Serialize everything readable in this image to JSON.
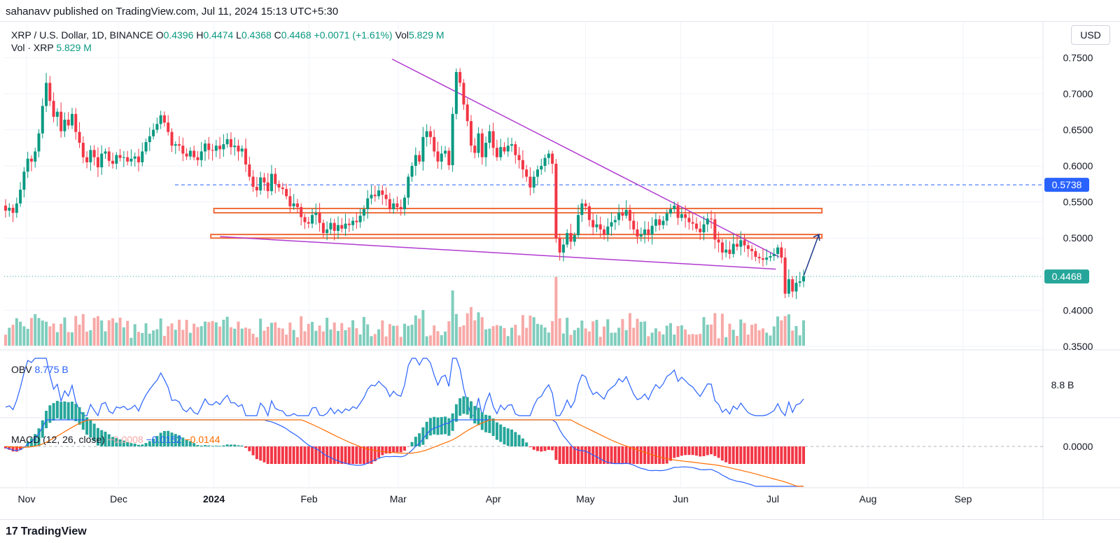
{
  "header": {
    "publish_text": "sahanavv published on TradingView.com, Jul 11, 2024 15:13 UTC+5:30"
  },
  "legend": {
    "symbol": "XRP / U.S. Dollar, 1D, BINANCE",
    "o_label": "O",
    "o_value": "0.4396",
    "h_label": "H",
    "h_value": "0.4474",
    "l_label": "L",
    "l_value": "0.4368",
    "c_label": "C",
    "c_value": "0.4468",
    "change": "+0.0071 (+1.61%)",
    "vol_label": "Vol",
    "vol_value": "5.829 M",
    "vol_line_label": "Vol · XRP",
    "vol_line_value": "5.829 M"
  },
  "currency": "USD",
  "indicators": {
    "obv_label": "OBV",
    "obv_value": "8.775 B",
    "macd_label": "MACD (12, 26, close)",
    "macd_hist": "−0.0008",
    "macd_line": "−0.0152",
    "macd_signal": "−0.0144"
  },
  "footer": {
    "logo_mark": "17",
    "logo_text": "TradingView"
  },
  "colors": {
    "up": "#089981",
    "down": "#f23645",
    "vol_up": "#7fcdbd",
    "vol_down": "#f7a9a7",
    "zone": "#ef6c3a",
    "trend": "#b13ad1",
    "obv": "#2962ff",
    "macd": "#2962ff",
    "signal": "#ff6d00",
    "dashed": "#2962ff",
    "price_tag": "#26a69a",
    "level_tag": "#2962ff"
  },
  "chart_data": {
    "type": "candlestick",
    "price_axis": {
      "ylim": [
        0.35,
        0.76
      ],
      "ticks": [
        "0.7500",
        "0.7000",
        "0.6500",
        "0.6000",
        "0.5500",
        "0.5000",
        "0.4000",
        "0.3500"
      ]
    },
    "time_axis": {
      "labels": [
        "Nov",
        "Dec",
        "2024",
        "Feb",
        "Mar",
        "Apr",
        "May",
        "Jun",
        "Jul",
        "Aug",
        "Sep"
      ]
    },
    "obv_axis": {
      "tick": "8.8 B"
    },
    "macd_axis": {
      "tick": "0.0000"
    },
    "current_price": "0.4468",
    "resistance_level": "0.5738",
    "zones": [
      {
        "from": 0.535,
        "to": 0.541,
        "start": "2024-01-01",
        "end": "2024-07-17"
      },
      {
        "from": 0.5,
        "to": 0.505,
        "start": "2023-12-31",
        "end": "2024-07-17"
      }
    ],
    "trendlines": [
      {
        "from": [
          "2024-02-28",
          0.748
        ],
        "to": [
          "2024-07-03",
          0.474
        ]
      },
      {
        "from": [
          "2024-01-03",
          0.502
        ],
        "to": [
          "2024-07-02",
          0.457
        ]
      }
    ],
    "projection_arrow": {
      "from": [
        "2024-07-11",
        0.447
      ],
      "to": [
        "2024-07-16",
        0.505
      ]
    },
    "candles": [
      [
        0.545,
        0.538
      ],
      [
        0.538,
        0.542
      ],
      [
        0.542,
        0.535
      ],
      [
        0.535,
        0.548
      ],
      [
        0.548,
        0.567
      ],
      [
        0.567,
        0.592
      ],
      [
        0.592,
        0.61
      ],
      [
        0.61,
        0.606
      ],
      [
        0.606,
        0.62
      ],
      [
        0.62,
        0.645
      ],
      [
        0.645,
        0.683
      ],
      [
        0.683,
        0.715
      ],
      [
        0.715,
        0.69
      ],
      [
        0.69,
        0.668
      ],
      [
        0.668,
        0.675
      ],
      [
        0.675,
        0.648
      ],
      [
        0.648,
        0.664
      ],
      [
        0.664,
        0.656
      ],
      [
        0.656,
        0.672
      ],
      [
        0.672,
        0.647
      ],
      [
        0.647,
        0.632
      ],
      [
        0.632,
        0.612
      ],
      [
        0.612,
        0.605
      ],
      [
        0.605,
        0.622
      ],
      [
        0.622,
        0.612
      ],
      [
        0.612,
        0.598
      ],
      [
        0.598,
        0.617
      ],
      [
        0.617,
        0.62
      ],
      [
        0.62,
        0.607
      ],
      [
        0.607,
        0.603
      ],
      [
        0.603,
        0.615
      ],
      [
        0.615,
        0.611
      ],
      [
        0.611,
        0.612
      ],
      [
        0.612,
        0.606
      ],
      [
        0.606,
        0.61
      ],
      [
        0.61,
        0.613
      ],
      [
        0.613,
        0.605
      ],
      [
        0.605,
        0.62
      ],
      [
        0.62,
        0.633
      ],
      [
        0.633,
        0.641
      ],
      [
        0.641,
        0.65
      ],
      [
        0.65,
        0.658
      ],
      [
        0.658,
        0.67
      ],
      [
        0.67,
        0.66
      ],
      [
        0.66,
        0.647
      ],
      [
        0.647,
        0.628
      ],
      [
        0.628,
        0.63
      ],
      [
        0.63,
        0.628
      ],
      [
        0.628,
        0.617
      ],
      [
        0.617,
        0.613
      ],
      [
        0.613,
        0.621
      ],
      [
        0.621,
        0.612
      ],
      [
        0.612,
        0.608
      ],
      [
        0.608,
        0.62
      ],
      [
        0.62,
        0.631
      ],
      [
        0.631,
        0.622
      ],
      [
        0.622,
        0.621
      ],
      [
        0.621,
        0.628
      ],
      [
        0.628,
        0.623
      ],
      [
        0.623,
        0.63
      ],
      [
        0.63,
        0.637
      ],
      [
        0.637,
        0.626
      ],
      [
        0.626,
        0.628
      ],
      [
        0.628,
        0.62
      ],
      [
        0.62,
        0.624
      ],
      [
        0.624,
        0.602
      ],
      [
        0.602,
        0.585
      ],
      [
        0.585,
        0.571
      ],
      [
        0.571,
        0.566
      ],
      [
        0.566,
        0.584
      ],
      [
        0.584,
        0.577
      ],
      [
        0.577,
        0.565
      ],
      [
        0.565,
        0.589
      ],
      [
        0.589,
        0.575
      ],
      [
        0.575,
        0.57
      ],
      [
        0.57,
        0.568
      ],
      [
        0.568,
        0.558
      ],
      [
        0.558,
        0.544
      ],
      [
        0.544,
        0.548
      ],
      [
        0.548,
        0.543
      ],
      [
        0.543,
        0.529
      ],
      [
        0.529,
        0.522
      ],
      [
        0.522,
        0.52
      ],
      [
        0.52,
        0.532
      ],
      [
        0.532,
        0.535
      ],
      [
        0.535,
        0.521
      ],
      [
        0.521,
        0.507
      ],
      [
        0.507,
        0.512
      ],
      [
        0.512,
        0.521
      ],
      [
        0.521,
        0.51
      ],
      [
        0.51,
        0.518
      ],
      [
        0.518,
        0.513
      ],
      [
        0.513,
        0.52
      ],
      [
        0.52,
        0.518
      ],
      [
        0.518,
        0.524
      ],
      [
        0.524,
        0.522
      ],
      [
        0.522,
        0.531
      ],
      [
        0.531,
        0.54
      ],
      [
        0.54,
        0.555
      ],
      [
        0.555,
        0.56
      ],
      [
        0.56,
        0.558
      ],
      [
        0.558,
        0.566
      ],
      [
        0.566,
        0.56
      ],
      [
        0.56,
        0.554
      ],
      [
        0.554,
        0.54
      ],
      [
        0.54,
        0.548
      ],
      [
        0.548,
        0.543
      ],
      [
        0.543,
        0.54
      ],
      [
        0.54,
        0.556
      ],
      [
        0.556,
        0.585
      ],
      [
        0.585,
        0.6
      ],
      [
        0.6,
        0.615
      ],
      [
        0.615,
        0.606
      ],
      [
        0.606,
        0.64
      ],
      [
        0.64,
        0.648
      ],
      [
        0.648,
        0.64
      ],
      [
        0.64,
        0.62
      ],
      [
        0.62,
        0.606
      ],
      [
        0.606,
        0.617
      ],
      [
        0.617,
        0.621
      ],
      [
        0.621,
        0.601
      ],
      [
        0.601,
        0.672
      ],
      [
        0.672,
        0.73
      ],
      [
        0.73,
        0.715
      ],
      [
        0.715,
        0.685
      ],
      [
        0.685,
        0.662
      ],
      [
        0.662,
        0.628
      ],
      [
        0.628,
        0.618
      ],
      [
        0.618,
        0.645
      ],
      [
        0.645,
        0.612
      ],
      [
        0.612,
        0.632
      ],
      [
        0.632,
        0.648
      ],
      [
        0.648,
        0.625
      ],
      [
        0.625,
        0.612
      ],
      [
        0.612,
        0.626
      ],
      [
        0.626,
        0.62
      ],
      [
        0.62,
        0.628
      ],
      [
        0.628,
        0.63
      ],
      [
        0.63,
        0.615
      ],
      [
        0.615,
        0.608
      ],
      [
        0.608,
        0.595
      ],
      [
        0.595,
        0.585
      ],
      [
        0.585,
        0.57
      ],
      [
        0.57,
        0.585
      ],
      [
        0.585,
        0.595
      ],
      [
        0.595,
        0.6
      ],
      [
        0.6,
        0.611
      ],
      [
        0.611,
        0.617
      ],
      [
        0.617,
        0.603
      ],
      [
        0.603,
        0.5
      ],
      [
        0.5,
        0.48
      ],
      [
        0.48,
        0.491
      ],
      [
        0.491,
        0.507
      ],
      [
        0.507,
        0.495
      ],
      [
        0.495,
        0.504
      ],
      [
        0.504,
        0.532
      ],
      [
        0.532,
        0.548
      ],
      [
        0.548,
        0.544
      ],
      [
        0.544,
        0.525
      ],
      [
        0.525,
        0.515
      ],
      [
        0.515,
        0.519
      ],
      [
        0.519,
        0.512
      ],
      [
        0.512,
        0.505
      ],
      [
        0.505,
        0.516
      ],
      [
        0.516,
        0.522
      ],
      [
        0.522,
        0.525
      ],
      [
        0.525,
        0.535
      ],
      [
        0.535,
        0.531
      ],
      [
        0.531,
        0.539
      ],
      [
        0.539,
        0.524
      ],
      [
        0.524,
        0.512
      ],
      [
        0.512,
        0.502
      ],
      [
        0.502,
        0.505
      ],
      [
        0.505,
        0.512
      ],
      [
        0.512,
        0.505
      ],
      [
        0.505,
        0.517
      ],
      [
        0.517,
        0.526
      ],
      [
        0.526,
        0.518
      ],
      [
        0.518,
        0.524
      ],
      [
        0.524,
        0.534
      ],
      [
        0.534,
        0.54
      ],
      [
        0.54,
        0.545
      ],
      [
        0.545,
        0.528
      ],
      [
        0.528,
        0.533
      ],
      [
        0.533,
        0.528
      ],
      [
        0.528,
        0.522
      ],
      [
        0.522,
        0.52
      ],
      [
        0.52,
        0.513
      ],
      [
        0.513,
        0.508
      ],
      [
        0.508,
        0.519
      ],
      [
        0.519,
        0.527
      ],
      [
        0.527,
        0.526
      ],
      [
        0.526,
        0.498
      ],
      [
        0.498,
        0.494
      ],
      [
        0.494,
        0.48
      ],
      [
        0.48,
        0.484
      ],
      [
        0.484,
        0.478
      ],
      [
        0.478,
        0.492
      ],
      [
        0.492,
        0.488
      ],
      [
        0.488,
        0.497
      ],
      [
        0.497,
        0.49
      ],
      [
        0.49,
        0.485
      ],
      [
        0.485,
        0.482
      ],
      [
        0.482,
        0.474
      ],
      [
        0.474,
        0.472
      ],
      [
        0.472,
        0.47
      ],
      [
        0.47,
        0.473
      ],
      [
        0.473,
        0.475
      ],
      [
        0.475,
        0.478
      ],
      [
        0.478,
        0.487
      ],
      [
        0.487,
        0.473
      ],
      [
        0.473,
        0.423
      ],
      [
        0.423,
        0.443
      ],
      [
        0.443,
        0.426
      ],
      [
        0.426,
        0.438
      ],
      [
        0.438,
        0.44
      ],
      [
        0.44,
        0.447
      ]
    ]
  }
}
